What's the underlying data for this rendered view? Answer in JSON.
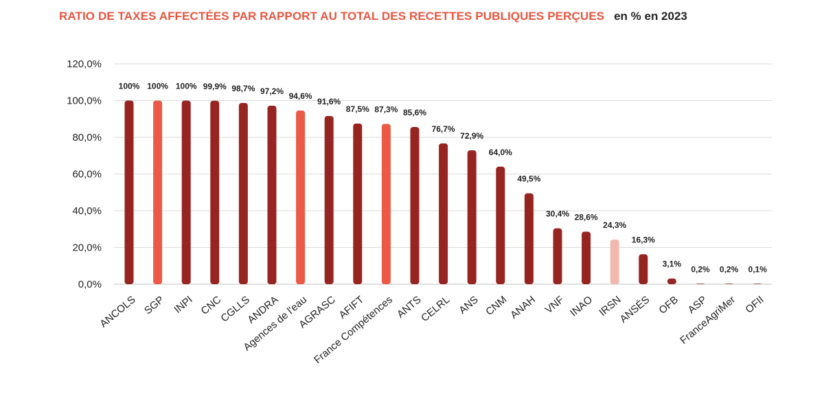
{
  "title": "RATIO DE TAXES AFFECTÉES PAR RAPPORT AU TOTAL DES RECETTES PUBLIQUES PERÇUES",
  "subtitle": "en % en 2023",
  "colors": {
    "dark": "#962420",
    "bright": "#ea5a46",
    "light": "#f2b8ae",
    "grid": "#d9d9d9",
    "title": "#e8553f"
  },
  "chart_data": {
    "type": "bar",
    "title": "RATIO DE TAXES AFFECTÉES PAR RAPPORT AU TOTAL DES RECETTES PUBLIQUES PERÇUES",
    "subtitle": "en % en 2023",
    "xlabel": "",
    "ylabel": "",
    "ylim": [
      0,
      120
    ],
    "yticks": [
      "0,0%",
      "20,0%",
      "40,0%",
      "60,0%",
      "80,0%",
      "100,0%",
      "120,0%"
    ],
    "grid": true,
    "categories": [
      "ANCOLS",
      "SGP",
      "INPI",
      "CNC",
      "CGLLS",
      "ANDRA",
      "Agences de l'eau",
      "AGRASC",
      "AFIFT",
      "France Compétences",
      "ANTS",
      "CELRL",
      "ANS",
      "CNM",
      "ANAH",
      "VNF",
      "INAO",
      "IRSN",
      "ANSÉS",
      "OFB",
      "ASP",
      "FranceAgriMer",
      "OFII"
    ],
    "values": [
      100,
      100,
      100,
      99.9,
      98.7,
      97.2,
      94.6,
      91.6,
      87.5,
      87.3,
      85.6,
      76.7,
      72.9,
      64.0,
      49.5,
      30.4,
      28.6,
      24.3,
      16.3,
      3.1,
      0.2,
      0.2,
      0.1
    ],
    "data_labels": [
      "100%",
      "100%",
      "100%",
      "99,9%",
      "98,7%",
      "97,2%",
      "94,6%",
      "91,6%",
      "87,5%",
      "87,3%",
      "85,6%",
      "76,7%",
      "72,9%",
      "64,0%",
      "49,5%",
      "30,4%",
      "28,6%",
      "24,3%",
      "16,3%",
      "3,1%",
      "0,2%",
      "0,2%",
      "0,1%"
    ],
    "bar_colors": [
      "dark",
      "bright",
      "dark",
      "dark",
      "dark",
      "dark",
      "bright",
      "dark",
      "dark",
      "bright",
      "dark",
      "dark",
      "dark",
      "dark",
      "dark",
      "dark",
      "dark",
      "light",
      "dark",
      "dark",
      "dark",
      "dark",
      "dark"
    ]
  }
}
